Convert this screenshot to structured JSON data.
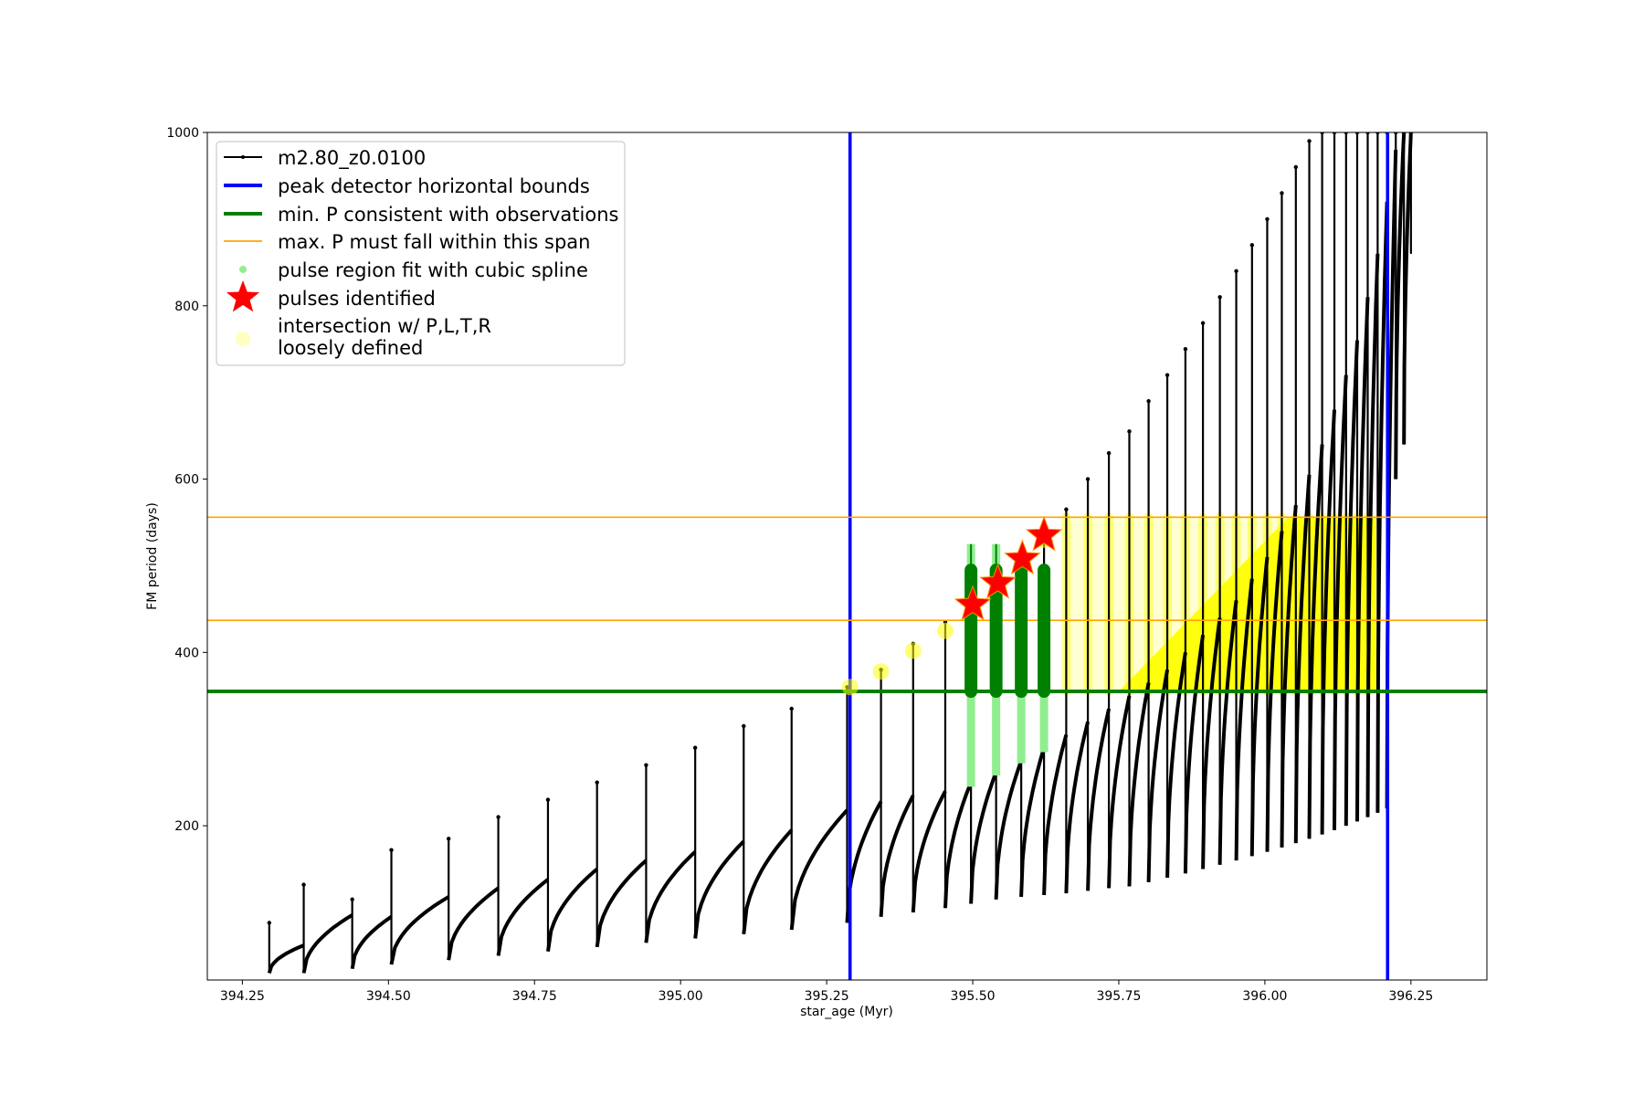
{
  "chart_data": {
    "type": "line",
    "title": "",
    "xlabel": "star_age (Myr)",
    "ylabel": "FM period (days)",
    "xlim": [
      394.19,
      396.38
    ],
    "ylim": [
      22,
      1000
    ],
    "xticks": [
      "394.25",
      "394.50",
      "394.75",
      "395.00",
      "395.25",
      "395.50",
      "395.75",
      "396.00",
      "396.25"
    ],
    "xtick_values": [
      394.25,
      394.5,
      394.75,
      395.0,
      395.25,
      395.5,
      395.75,
      396.0,
      396.25
    ],
    "yticks": [
      "200",
      "400",
      "600",
      "800",
      "1000"
    ],
    "ytick_values": [
      200,
      400,
      600,
      800,
      1000
    ],
    "grid": false,
    "legend_position": "top-left",
    "colors": {
      "track": "#000000",
      "bounds": "#0000ff",
      "min_period": "#008000",
      "max_period": "#ffa500",
      "spline": "#90ee90",
      "pulse": "#ff0000",
      "pulse_edge": "#ff8c00",
      "intersection": "#ffff00"
    },
    "series": [
      {
        "name": "m2.80_z0.0100",
        "kind": "pulsation track",
        "pulses": [
          {
            "x": 394.296,
            "min": 30,
            "rise_top": 62,
            "spike": 88
          },
          {
            "x": 394.355,
            "min": 30,
            "rise_top": 97,
            "spike": 132
          },
          {
            "x": 394.438,
            "min": 35,
            "rise_top": 95,
            "spike": 115
          },
          {
            "x": 394.505,
            "min": 40,
            "rise_top": 118,
            "spike": 172
          },
          {
            "x": 394.603,
            "min": 45,
            "rise_top": 128,
            "spike": 185
          },
          {
            "x": 394.688,
            "min": 50,
            "rise_top": 138,
            "spike": 210
          },
          {
            "x": 394.773,
            "min": 55,
            "rise_top": 150,
            "spike": 230
          },
          {
            "x": 394.857,
            "min": 60,
            "rise_top": 160,
            "spike": 250
          },
          {
            "x": 394.941,
            "min": 65,
            "rise_top": 170,
            "spike": 270
          },
          {
            "x": 395.025,
            "min": 70,
            "rise_top": 182,
            "spike": 290
          },
          {
            "x": 395.108,
            "min": 75,
            "rise_top": 195,
            "spike": 315
          },
          {
            "x": 395.19,
            "min": 80,
            "rise_top": 218,
            "spike": 335
          },
          {
            "x": 395.285,
            "min": 88,
            "rise_top": 228,
            "spike": 360
          },
          {
            "x": 395.343,
            "min": 95,
            "rise_top": 235,
            "spike": 380
          },
          {
            "x": 395.398,
            "min": 100,
            "rise_top": 240,
            "spike": 410
          },
          {
            "x": 395.453,
            "min": 105,
            "rise_top": 250,
            "spike": 435
          },
          {
            "x": 395.497,
            "min": 110,
            "rise_top": 262,
            "spike": 455
          },
          {
            "x": 395.54,
            "min": 115,
            "rise_top": 275,
            "spike": 480
          },
          {
            "x": 395.583,
            "min": 118,
            "rise_top": 290,
            "spike": 505
          },
          {
            "x": 395.622,
            "min": 120,
            "rise_top": 305,
            "spike": 535
          },
          {
            "x": 395.66,
            "min": 122,
            "rise_top": 320,
            "spike": 565
          },
          {
            "x": 395.697,
            "min": 125,
            "rise_top": 335,
            "spike": 600
          },
          {
            "x": 395.733,
            "min": 128,
            "rise_top": 350,
            "spike": 630
          },
          {
            "x": 395.768,
            "min": 130,
            "rise_top": 365,
            "spike": 655
          },
          {
            "x": 395.801,
            "min": 135,
            "rise_top": 380,
            "spike": 690
          },
          {
            "x": 395.833,
            "min": 140,
            "rise_top": 400,
            "spike": 720
          },
          {
            "x": 395.864,
            "min": 145,
            "rise_top": 420,
            "spike": 750
          },
          {
            "x": 395.894,
            "min": 150,
            "rise_top": 440,
            "spike": 780
          },
          {
            "x": 395.923,
            "min": 155,
            "rise_top": 460,
            "spike": 810
          },
          {
            "x": 395.951,
            "min": 160,
            "rise_top": 485,
            "spike": 840
          },
          {
            "x": 395.978,
            "min": 165,
            "rise_top": 510,
            "spike": 870
          },
          {
            "x": 396.004,
            "min": 170,
            "rise_top": 540,
            "spike": 900
          },
          {
            "x": 396.029,
            "min": 175,
            "rise_top": 570,
            "spike": 930
          },
          {
            "x": 396.053,
            "min": 180,
            "rise_top": 605,
            "spike": 960
          },
          {
            "x": 396.076,
            "min": 185,
            "rise_top": 640,
            "spike": 990
          },
          {
            "x": 396.098,
            "min": 190,
            "rise_top": 680,
            "spike": 1000
          },
          {
            "x": 396.119,
            "min": 195,
            "rise_top": 720,
            "spike": 1000
          },
          {
            "x": 396.139,
            "min": 200,
            "rise_top": 760,
            "spike": 1000
          },
          {
            "x": 396.158,
            "min": 205,
            "rise_top": 810,
            "spike": 1000
          },
          {
            "x": 396.176,
            "min": 210,
            "rise_top": 860,
            "spike": 1000
          },
          {
            "x": 396.193,
            "min": 215,
            "rise_top": 920,
            "spike": 1000
          },
          {
            "x": 396.209,
            "min": 220,
            "rise_top": 980,
            "spike": 1000
          },
          {
            "x": 396.224,
            "min": 600,
            "rise_top": 1000,
            "spike": 1000
          },
          {
            "x": 396.238,
            "min": 640,
            "rise_top": 1000,
            "spike": 1000
          },
          {
            "x": 396.25,
            "min": 860,
            "rise_top": 1000,
            "spike": 1000
          }
        ]
      },
      {
        "name": "peak detector horizontal bounds",
        "kind": "vline",
        "x": [
          395.29,
          396.21
        ]
      },
      {
        "name": "min. P consistent with observations",
        "kind": "hline",
        "y": 355
      },
      {
        "name": "max. P must fall within this span",
        "kind": "hline",
        "y": [
          437,
          556
        ]
      },
      {
        "name": "pulse region fit with cubic spline",
        "kind": "spline",
        "segments": [
          {
            "x": 395.497,
            "low": 245,
            "high": 525,
            "fit_low": 355,
            "fit_high": 495
          },
          {
            "x": 395.54,
            "low": 258,
            "high": 525,
            "fit_low": 355,
            "fit_high": 495
          },
          {
            "x": 395.583,
            "low": 272,
            "high": 495,
            "fit_low": 355,
            "fit_high": 495
          },
          {
            "x": 395.622,
            "low": 285,
            "high": 495,
            "fit_low": 355,
            "fit_high": 495
          }
        ]
      },
      {
        "name": "pulses identified",
        "kind": "marker",
        "points": [
          {
            "x": 395.5,
            "y": 455
          },
          {
            "x": 395.543,
            "y": 480
          },
          {
            "x": 395.585,
            "y": 508
          },
          {
            "x": 395.622,
            "y": 535
          }
        ]
      },
      {
        "name": "intersection w/ P,L,T,R\nloosely defined",
        "kind": "marker",
        "points": [
          {
            "x": 395.29,
            "y": 360
          },
          {
            "x": 395.343,
            "y": 378
          },
          {
            "x": 395.398,
            "y": 402
          },
          {
            "x": 395.453,
            "y": 425
          },
          {
            "x": 395.622,
            "y": 530
          }
        ],
        "band": {
          "x_start": 395.75,
          "x_end": 396.19,
          "y_low": 355,
          "y_high": 556,
          "x_full": 396.04
        }
      }
    ]
  }
}
